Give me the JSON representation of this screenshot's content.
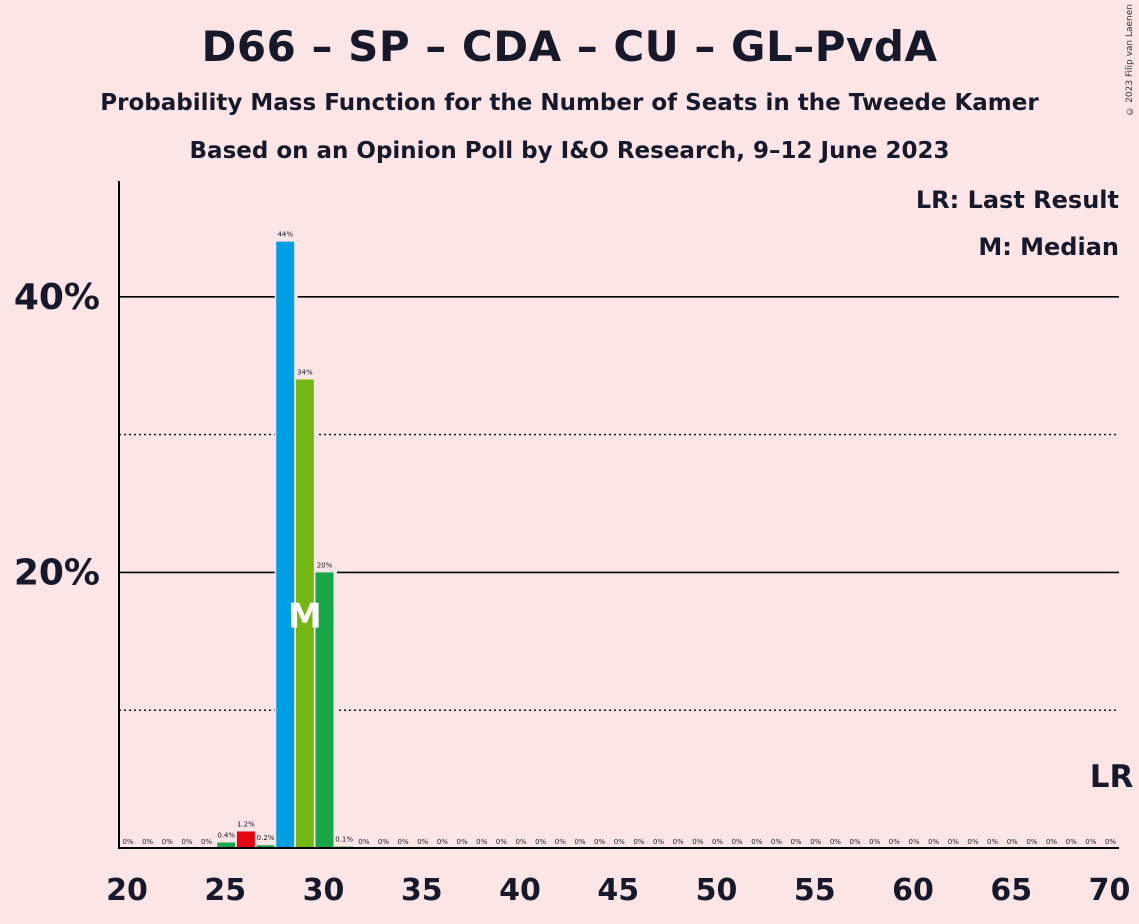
{
  "title": "D66 – SP – CDA – CU – GL–PvdA",
  "subtitle_1": "Probability Mass Function for the Number of Seats in the Tweede Kamer",
  "subtitle_2": "Based on an Opinion Poll by I&O Research, 9–12 June 2023",
  "copyright": "© 2023 Filip van Laenen",
  "legend": {
    "last_result": "LR: Last Result",
    "median": "M: Median"
  },
  "markers": {
    "median_label": "M",
    "last_result_label": "LR"
  },
  "colors": {
    "background": "#fce5e6",
    "blue": "#009fe3",
    "lime": "#74b715",
    "green": "#1aa548",
    "red": "#e30613",
    "axis": "#000000"
  },
  "chart_data": {
    "type": "bar",
    "x": [
      20,
      21,
      22,
      23,
      24,
      25,
      26,
      27,
      28,
      29,
      30,
      31,
      32,
      33,
      34,
      35,
      36,
      37,
      38,
      39,
      40,
      41,
      42,
      43,
      44,
      45,
      46,
      47,
      48,
      49,
      50,
      51,
      52,
      53,
      54,
      55,
      56,
      57,
      58,
      59,
      60,
      61,
      62,
      63,
      64,
      65,
      66,
      67,
      68,
      69,
      70
    ],
    "values": [
      0,
      0,
      0,
      0,
      0,
      0.4,
      1.2,
      0.2,
      44,
      34,
      20,
      0.1,
      0,
      0,
      0,
      0,
      0,
      0,
      0,
      0,
      0,
      0,
      0,
      0,
      0,
      0,
      0,
      0,
      0,
      0,
      0,
      0,
      0,
      0,
      0,
      0,
      0,
      0,
      0,
      0,
      0,
      0,
      0,
      0,
      0,
      0,
      0,
      0,
      0,
      0,
      0
    ],
    "labels": [
      "0%",
      "0%",
      "0%",
      "0%",
      "0%",
      "0.4%",
      "1.2%",
      "0.2%",
      "44%",
      "34%",
      "20%",
      "0.1%",
      "0%",
      "0%",
      "0%",
      "0%",
      "0%",
      "0%",
      "0%",
      "0%",
      "0%",
      "0%",
      "0%",
      "0%",
      "0%",
      "0%",
      "0%",
      "0%",
      "0%",
      "0%",
      "0%",
      "0%",
      "0%",
      "0%",
      "0%",
      "0%",
      "0%",
      "0%",
      "0%",
      "0%",
      "0%",
      "0%",
      "0%",
      "0%",
      "0%",
      "0%",
      "0%",
      "0%",
      "0%",
      "0%",
      "0%"
    ],
    "bar_colors": {
      "25": "#1aa548",
      "26": "#e30613",
      "27": "#1aa548",
      "28": "#009fe3",
      "29": "#74b715",
      "30": "#1aa548",
      "31": "#1aa548"
    },
    "median_seat": 29,
    "last_result_seat": 70,
    "xticks": [
      20,
      25,
      30,
      35,
      40,
      45,
      50,
      55,
      60,
      65,
      70
    ],
    "xtick_labels": [
      "20",
      "25",
      "30",
      "35",
      "40",
      "45",
      "50",
      "55",
      "60",
      "65",
      "70"
    ],
    "yticks_labeled": [
      20,
      40
    ],
    "ytick_labels": [
      "20%",
      "40%"
    ],
    "yticks_dotted": [
      10,
      30
    ],
    "ylim": [
      0,
      48
    ],
    "xlim": [
      20,
      70
    ]
  }
}
